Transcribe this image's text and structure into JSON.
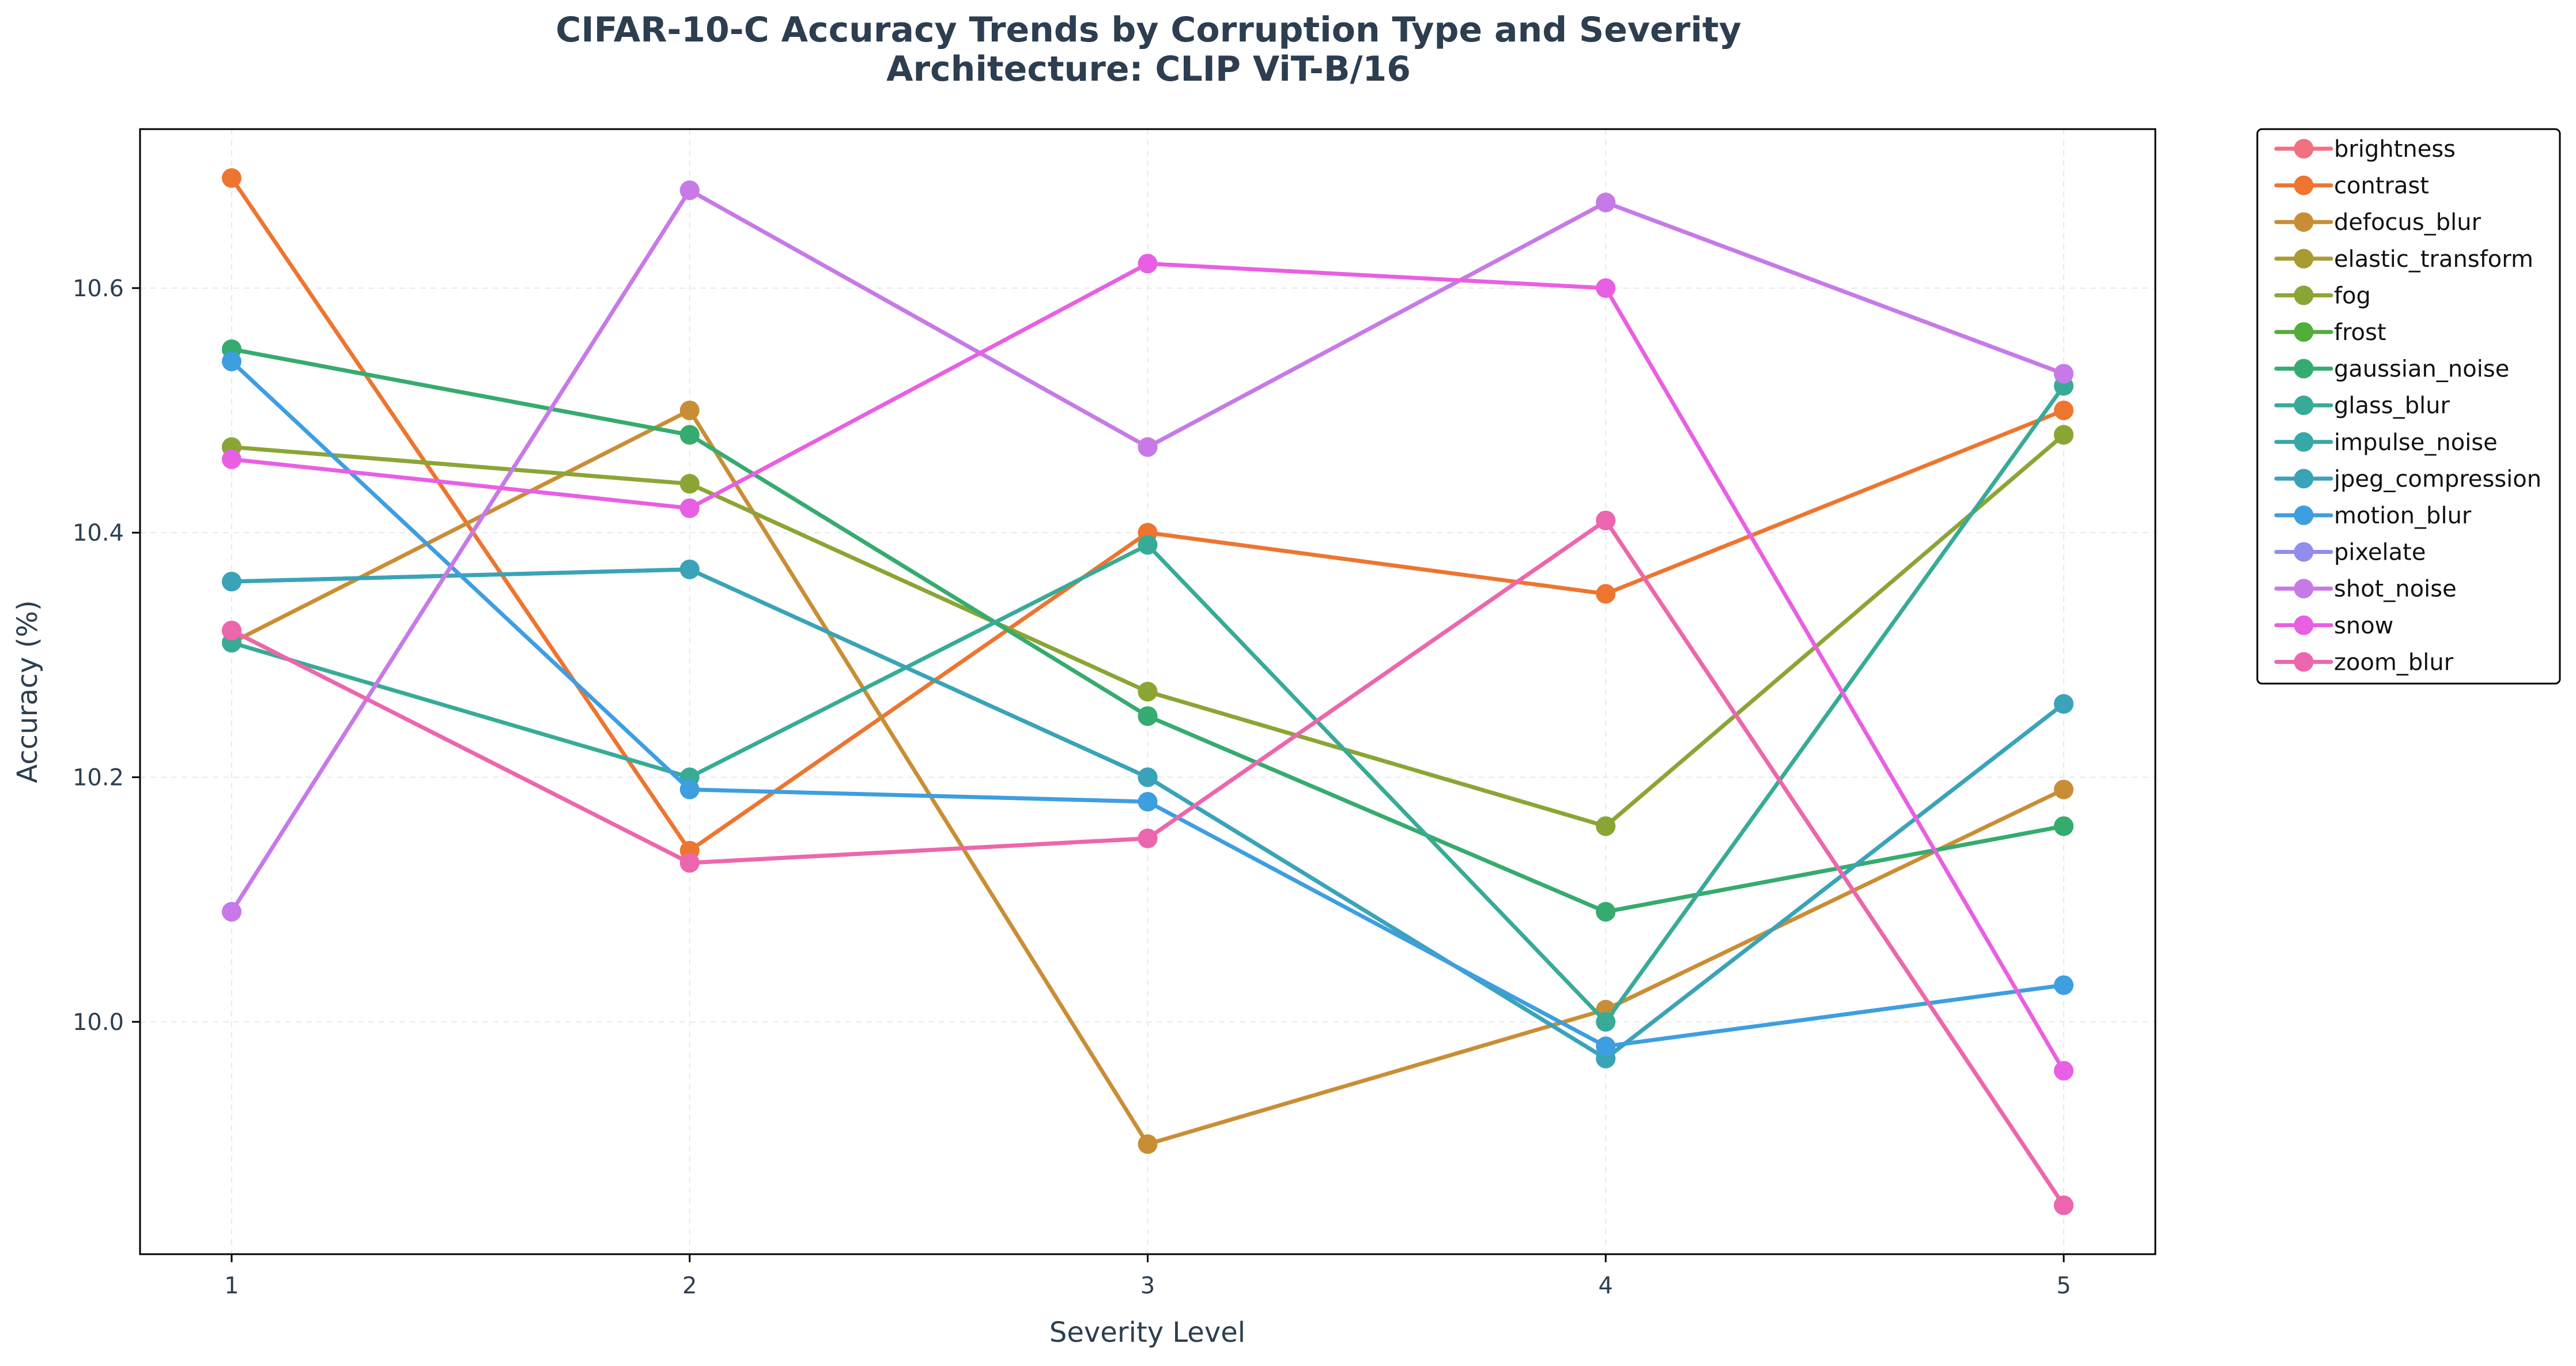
{
  "chart_data": {
    "type": "line",
    "title": "CIFAR-10-C Accuracy Trends by Corruption Type and Severity",
    "subtitle": "Architecture: CLIP ViT-B/16",
    "xlabel": "Severity Level",
    "ylabel": "Accuracy (%)",
    "x": [
      1,
      2,
      3,
      4,
      5
    ],
    "xticks": [
      "1",
      "2",
      "3",
      "4",
      "5"
    ],
    "yticks": [
      "10.0",
      "10.2",
      "10.4",
      "10.6"
    ],
    "ytick_values": [
      10.0,
      10.2,
      10.4,
      10.6
    ],
    "xlim": [
      0.8,
      5.2
    ],
    "ylim": [
      9.81,
      10.73
    ],
    "grid": true,
    "legend_position": "outside-right-top",
    "series": [
      {
        "name": "brightness",
        "color": "#f0717f",
        "values": [
          10.32,
          10.13,
          10.15,
          10.41,
          9.85
        ]
      },
      {
        "name": "contrast",
        "color": "#ed7530",
        "values": [
          10.69,
          10.14,
          10.4,
          10.35,
          10.5
        ]
      },
      {
        "name": "defocus_blur",
        "color": "#c98e35",
        "values": [
          10.31,
          10.5,
          9.9,
          10.01,
          10.19
        ]
      },
      {
        "name": "elastic_transform",
        "color": "#a89b33",
        "values": [
          10.47,
          10.44,
          10.27,
          10.16,
          10.48
        ]
      },
      {
        "name": "fog",
        "color": "#8ba535",
        "values": [
          10.47,
          10.44,
          10.27,
          10.16,
          10.48
        ]
      },
      {
        "name": "frost",
        "color": "#52ad3b",
        "values": [
          10.55,
          10.48,
          10.25,
          10.09,
          10.16
        ]
      },
      {
        "name": "gaussian_noise",
        "color": "#36ab6f",
        "values": [
          10.55,
          10.48,
          10.25,
          10.09,
          10.16
        ]
      },
      {
        "name": "glass_blur",
        "color": "#37ab95",
        "values": [
          10.31,
          10.2,
          10.39,
          10.0,
          10.52
        ]
      },
      {
        "name": "impulse_noise",
        "color": "#38a8a6",
        "values": [
          10.36,
          10.37,
          10.2,
          9.97,
          10.26
        ]
      },
      {
        "name": "jpeg_compression",
        "color": "#3aa3b8",
        "values": [
          10.36,
          10.37,
          10.2,
          9.97,
          10.26
        ]
      },
      {
        "name": "motion_blur",
        "color": "#3d9ee0",
        "values": [
          10.54,
          10.19,
          10.18,
          9.98,
          10.03
        ]
      },
      {
        "name": "pixelate",
        "color": "#938ceb",
        "values": [
          10.09,
          10.68,
          10.47,
          10.67,
          10.53
        ]
      },
      {
        "name": "shot_noise",
        "color": "#c879e8",
        "values": [
          10.09,
          10.68,
          10.47,
          10.67,
          10.53
        ]
      },
      {
        "name": "snow",
        "color": "#e85fe3",
        "values": [
          10.46,
          10.42,
          10.62,
          10.6,
          9.96
        ]
      },
      {
        "name": "zoom_blur",
        "color": "#ec66ad",
        "values": [
          10.32,
          10.13,
          10.15,
          10.41,
          9.85
        ]
      }
    ]
  }
}
